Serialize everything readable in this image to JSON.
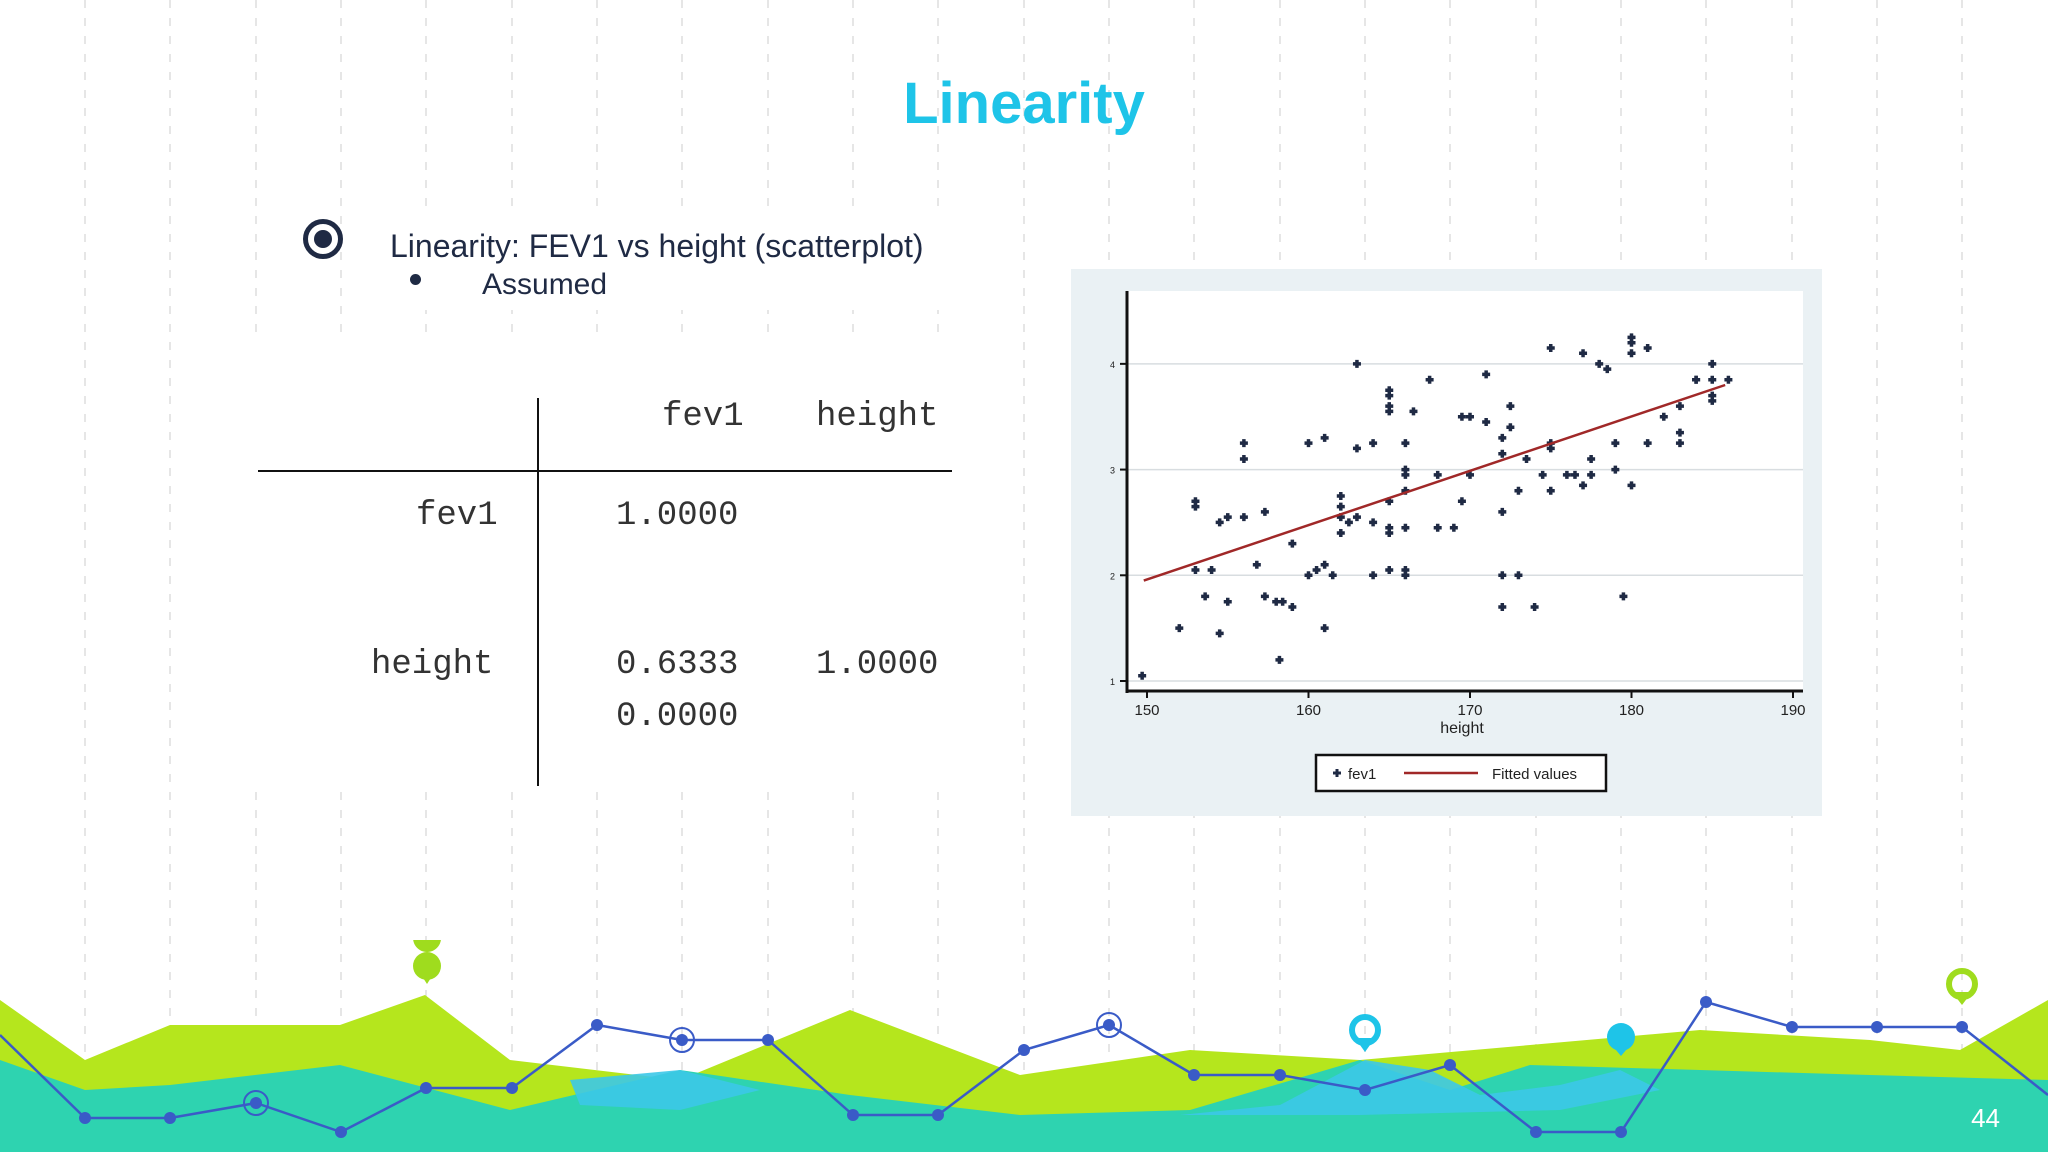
{
  "slide": {
    "title": "Linearity",
    "bullet": "Linearity: FEV1 vs height (scatterplot)",
    "sub_bullet": "Assumed",
    "page_number": "44"
  },
  "correlation_table": {
    "headers": [
      "fev1",
      "height"
    ],
    "rows": [
      {
        "label": "fev1",
        "values": [
          "1.0000",
          ""
        ]
      },
      {
        "label": "height",
        "values": [
          "0.6333",
          "1.0000"
        ],
        "second_line": "0.0000"
      }
    ]
  },
  "chart_data": {
    "type": "scatter",
    "xlabel": "height",
    "ylabel": "",
    "xlim": [
      150,
      190
    ],
    "ylim": [
      1,
      4.5
    ],
    "x_ticks": [
      "150",
      "160",
      "170",
      "180",
      "190"
    ],
    "y_ticks": [
      "1",
      "2",
      "3",
      "4"
    ],
    "grid": true,
    "legend_position": "bottom",
    "series": [
      {
        "name": "fev1",
        "marker": "plus",
        "color": "#1f2a44",
        "points": [
          [
            149.7,
            1.05
          ],
          [
            152,
            1.5
          ],
          [
            153,
            2.65
          ],
          [
            153,
            2.7
          ],
          [
            153,
            2.05
          ],
          [
            153.6,
            1.8
          ],
          [
            154,
            2.05
          ],
          [
            154.5,
            1.45
          ],
          [
            154.5,
            2.5
          ],
          [
            155,
            1.75
          ],
          [
            155,
            2.55
          ],
          [
            156,
            2.55
          ],
          [
            156,
            3.1
          ],
          [
            156,
            3.25
          ],
          [
            156.8,
            2.1
          ],
          [
            157.3,
            2.6
          ],
          [
            157.3,
            1.8
          ],
          [
            158,
            1.75
          ],
          [
            158.2,
            1.2
          ],
          [
            158.4,
            1.75
          ],
          [
            159,
            1.7
          ],
          [
            159,
            2.3
          ],
          [
            160,
            2.0
          ],
          [
            160,
            3.25
          ],
          [
            160.5,
            2.05
          ],
          [
            161,
            1.5
          ],
          [
            161,
            2.1
          ],
          [
            161,
            3.3
          ],
          [
            161.5,
            2.0
          ],
          [
            162,
            2.4
          ],
          [
            162,
            2.55
          ],
          [
            162,
            2.65
          ],
          [
            162,
            2.75
          ],
          [
            162.5,
            2.5
          ],
          [
            163,
            4.0
          ],
          [
            163,
            2.55
          ],
          [
            163,
            3.2
          ],
          [
            164,
            2.5
          ],
          [
            164,
            2.0
          ],
          [
            164,
            3.25
          ],
          [
            165,
            2.7
          ],
          [
            165,
            2.45
          ],
          [
            165,
            2.4
          ],
          [
            165,
            2.05
          ],
          [
            165,
            3.55
          ],
          [
            165,
            3.6
          ],
          [
            165,
            3.7
          ],
          [
            165,
            3.75
          ],
          [
            166,
            2.0
          ],
          [
            166,
            2.05
          ],
          [
            166,
            2.45
          ],
          [
            166,
            2.8
          ],
          [
            166,
            2.95
          ],
          [
            166,
            3.0
          ],
          [
            166,
            3.25
          ],
          [
            166.5,
            3.55
          ],
          [
            167.5,
            3.85
          ],
          [
            168,
            2.95
          ],
          [
            168,
            2.45
          ],
          [
            169,
            2.45
          ],
          [
            169.5,
            2.7
          ],
          [
            169.5,
            3.5
          ],
          [
            170,
            3.5
          ],
          [
            170,
            2.95
          ],
          [
            171,
            3.45
          ],
          [
            171,
            3.9
          ],
          [
            172,
            3.3
          ],
          [
            172,
            2.6
          ],
          [
            172,
            2.0
          ],
          [
            172,
            1.7
          ],
          [
            172,
            3.15
          ],
          [
            172.5,
            3.6
          ],
          [
            172.5,
            3.4
          ],
          [
            173,
            2.0
          ],
          [
            173,
            2.8
          ],
          [
            173.5,
            3.1
          ],
          [
            174,
            1.7
          ],
          [
            174.5,
            2.95
          ],
          [
            175,
            4.15
          ],
          [
            175,
            2.8
          ],
          [
            175,
            3.2
          ],
          [
            175,
            3.25
          ],
          [
            176,
            2.95
          ],
          [
            176.5,
            2.95
          ],
          [
            177,
            4.1
          ],
          [
            177,
            2.85
          ],
          [
            177.5,
            2.95
          ],
          [
            177.5,
            3.1
          ],
          [
            178,
            4.0
          ],
          [
            178.5,
            3.95
          ],
          [
            179,
            3.0
          ],
          [
            179,
            3.25
          ],
          [
            179.5,
            1.8
          ],
          [
            180,
            2.85
          ],
          [
            180,
            4.1
          ],
          [
            180,
            4.2
          ],
          [
            180,
            4.25
          ],
          [
            181,
            4.15
          ],
          [
            181,
            3.25
          ],
          [
            182,
            3.5
          ],
          [
            183,
            3.25
          ],
          [
            183,
            3.35
          ],
          [
            183,
            3.6
          ],
          [
            184,
            3.85
          ],
          [
            184,
            3.85
          ],
          [
            185,
            3.85
          ],
          [
            185,
            3.65
          ],
          [
            185,
            3.7
          ],
          [
            185,
            4.0
          ],
          [
            186,
            3.85
          ]
        ]
      },
      {
        "name": "Fitted values",
        "type": "line",
        "color": "#a02828",
        "x": [
          149.8,
          185.8
        ],
        "y": [
          1.95,
          3.8
        ]
      }
    ]
  },
  "colors": {
    "title": "#1ec4e8",
    "text": "#1f2a44",
    "wave_green": "#b5e61d",
    "wave_teal": "#2ed3b0",
    "wave_cyan": "#3cc8e8",
    "line_blue": "#3a5bc7"
  }
}
